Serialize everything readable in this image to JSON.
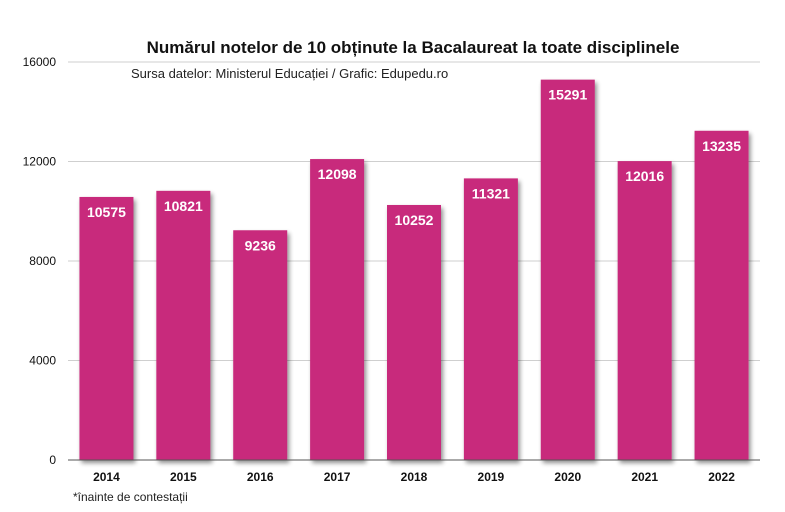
{
  "chart_data": {
    "type": "bar",
    "title": "Numărul notelor de 10 obținute la Bacalaureat la toate disciplinele",
    "subtitle": "Sursa datelor: Ministerul Educației / Grafic: Edupedu.ro",
    "footnote": "*înainte de contestații",
    "categories": [
      "2014",
      "2015",
      "2016",
      "2017",
      "2018",
      "2019",
      "2020",
      "2021",
      "2022"
    ],
    "values": [
      10575,
      10821,
      9236,
      12098,
      10252,
      11321,
      15291,
      12016,
      13235
    ],
    "ylim": [
      0,
      16000
    ],
    "yticks": [
      "0",
      "4000",
      "8000",
      "12000",
      "16000"
    ],
    "xlabel": "",
    "ylabel": "",
    "grid": true,
    "bar_color": "#c8297b"
  }
}
